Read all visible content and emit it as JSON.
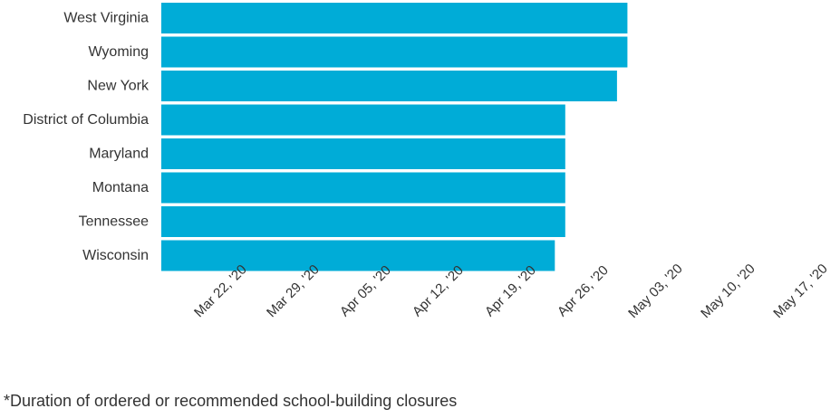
{
  "colors": {
    "bar": "#00acd7",
    "text": "#333333",
    "background": "#ffffff"
  },
  "footnote": "*Duration of ordered or recommended school-building closures",
  "chart_data": {
    "type": "bar",
    "orientation": "horizontal",
    "title": "",
    "xlabel": "",
    "ylabel": "",
    "categories": [
      "West Virginia",
      "Wyoming",
      "New York",
      "District of Columbia",
      "Maryland",
      "Montana",
      "Tennessee",
      "Wisconsin"
    ],
    "series": [
      {
        "start": [
          "2020-03-16",
          "2020-03-16",
          "2020-03-16",
          "2020-03-16",
          "2020-03-16",
          "2020-03-16",
          "2020-03-16",
          "2020-03-16"
        ],
        "end": [
          "2020-04-30",
          "2020-04-30",
          "2020-04-29",
          "2020-04-24",
          "2020-04-24",
          "2020-04-24",
          "2020-04-24",
          "2020-04-23"
        ]
      }
    ],
    "xaxis": {
      "type": "date",
      "ticks": [
        "2020-03-22",
        "2020-03-29",
        "2020-04-05",
        "2020-04-12",
        "2020-04-19",
        "2020-04-26",
        "2020-05-03",
        "2020-05-10",
        "2020-05-17"
      ],
      "tick_labels": [
        "Mar 22, '20",
        "Mar 29, '20",
        "Apr 05, '20",
        "Apr 12, '20",
        "Apr 19, '20",
        "Apr 26, '20",
        "May 03, '20",
        "May 10, '20",
        "May 17, '20"
      ],
      "range": [
        "2020-03-16",
        "2020-05-17"
      ]
    },
    "grid": false,
    "legend": "none"
  }
}
